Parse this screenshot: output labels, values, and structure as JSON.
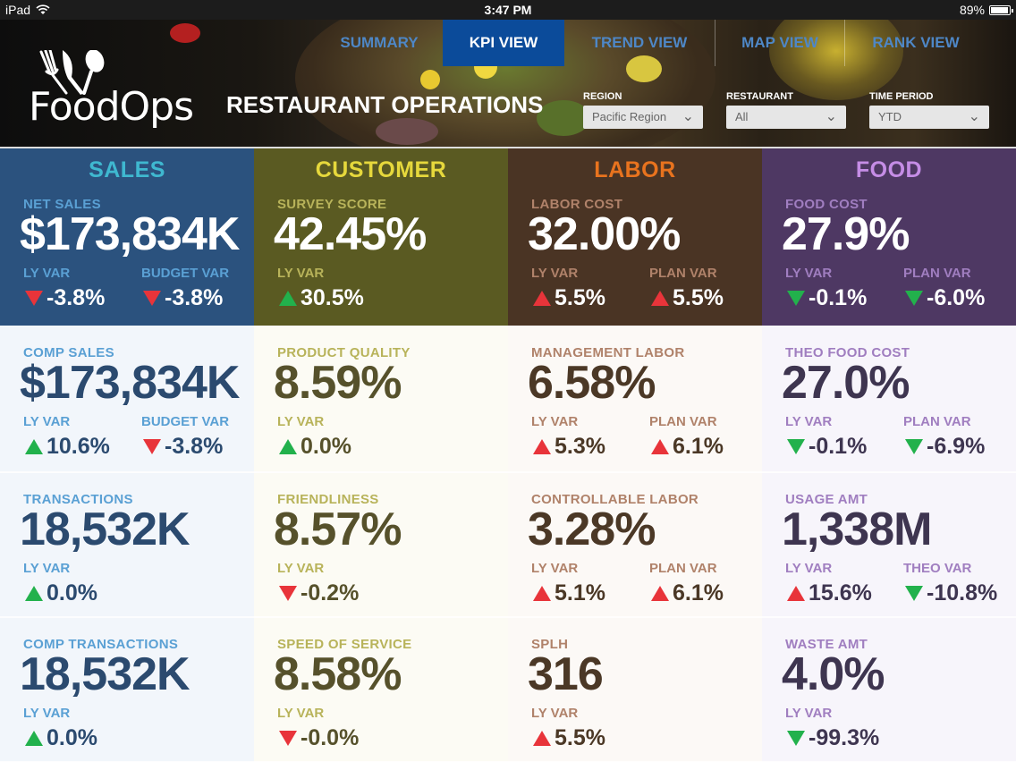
{
  "status_bar": {
    "device": "iPad",
    "time": "3:47 PM",
    "battery": "89%"
  },
  "nav": [
    {
      "label": "SUMMARY",
      "active": false
    },
    {
      "label": "KPI VIEW",
      "active": true
    },
    {
      "label": "TREND VIEW",
      "active": false
    },
    {
      "label": "MAP VIEW",
      "active": false
    },
    {
      "label": "RANK VIEW",
      "active": false
    }
  ],
  "logo": {
    "text": "FoodOps"
  },
  "title": "RESTAURANT OPERATIONS",
  "filters": {
    "region": {
      "label": "REGION",
      "value": "Pacific Region"
    },
    "restaurant": {
      "label": "RESTAURANT",
      "value": "All"
    },
    "time_period": {
      "label": "TIME PERIOD",
      "value": "YTD"
    }
  },
  "columns": {
    "sales": {
      "title": "SALES",
      "kpis": [
        {
          "label": "NET SALES",
          "value": "$173,834K",
          "var1_label": "LY VAR",
          "var1": "-3.8%",
          "var1_dir": "down",
          "var2_label": "BUDGET VAR",
          "var2": "-3.8%",
          "var2_dir": "down"
        },
        {
          "label": "COMP SALES",
          "value": "$173,834K",
          "var1_label": "LY VAR",
          "var1": "10.6%",
          "var1_dir": "up",
          "var2_label": "BUDGET VAR",
          "var2": "-3.8%",
          "var2_dir": "down"
        },
        {
          "label": "TRANSACTIONS",
          "value": "18,532K",
          "var1_label": "LY VAR",
          "var1": "0.0%",
          "var1_dir": "up"
        },
        {
          "label": "COMP TRANSACTIONS",
          "value": "18,532K",
          "var1_label": "LY VAR",
          "var1": "0.0%",
          "var1_dir": "up"
        }
      ]
    },
    "customer": {
      "title": "CUSTOMER",
      "kpis": [
        {
          "label": "SURVEY SCORE",
          "value": "42.45%",
          "var1_label": "LY VAR",
          "var1": "30.5%",
          "var1_dir": "up"
        },
        {
          "label": "PRODUCT QUALITY",
          "value": "8.59%",
          "var1_label": "LY VAR",
          "var1": "0.0%",
          "var1_dir": "up"
        },
        {
          "label": "FRIENDLINESS",
          "value": "8.57%",
          "var1_label": "LY VAR",
          "var1": "-0.2%",
          "var1_dir": "down"
        },
        {
          "label": "SPEED OF SERVICE",
          "value": "8.58%",
          "var1_label": "LY VAR",
          "var1": "-0.0%",
          "var1_dir": "down"
        }
      ]
    },
    "labor": {
      "title": "LABOR",
      "kpis": [
        {
          "label": "LABOR COST",
          "value": "32.00%",
          "var1_label": "LY VAR",
          "var1": "5.5%",
          "var1_dir": "up-red",
          "var2_label": "PLAN VAR",
          "var2": "5.5%",
          "var2_dir": "up-red"
        },
        {
          "label": "MANAGEMENT LABOR",
          "value": "6.58%",
          "var1_label": "LY VAR",
          "var1": "5.3%",
          "var1_dir": "up-red",
          "var2_label": "PLAN VAR",
          "var2": "6.1%",
          "var2_dir": "up-red"
        },
        {
          "label": "CONTROLLABLE LABOR",
          "value": "3.28%",
          "var1_label": "LY VAR",
          "var1": "5.1%",
          "var1_dir": "up-red",
          "var2_label": "PLAN VAR",
          "var2": "6.1%",
          "var2_dir": "up-red"
        },
        {
          "label": "SPLH",
          "value": "316",
          "var1_label": "LY VAR",
          "var1": "5.5%",
          "var1_dir": "up-red"
        }
      ]
    },
    "food": {
      "title": "FOOD",
      "kpis": [
        {
          "label": "FOOD COST",
          "value": "27.9%",
          "var1_label": "LY VAR",
          "var1": "-0.1%",
          "var1_dir": "down-green",
          "var2_label": "PLAN VAR",
          "var2": "-6.0%",
          "var2_dir": "down-green"
        },
        {
          "label": "THEO FOOD COST",
          "value": "27.0%",
          "var1_label": "LY VAR",
          "var1": "-0.1%",
          "var1_dir": "down-green",
          "var2_label": "PLAN VAR",
          "var2": "-6.9%",
          "var2_dir": "down-green"
        },
        {
          "label": "USAGE AMT",
          "value": "1,338M",
          "var1_label": "LY VAR",
          "var1": "15.6%",
          "var1_dir": "up-red",
          "var2_label": "THEO VAR",
          "var2": "-10.8%",
          "var2_dir": "down-green"
        },
        {
          "label": "WASTE AMT",
          "value": "4.0%",
          "var1_label": "LY VAR",
          "var1": "-99.3%",
          "var1_dir": "down-green"
        }
      ]
    }
  },
  "colors": {
    "sales_top": "#2b527e",
    "sales_title": "#3fb8d0",
    "sales_label": "#5aa0d4",
    "sales_rest": "#f2f6fb",
    "sales_text": "#2b4a6f",
    "customer_top": "#5a5a22",
    "customer_title": "#e6d83c",
    "customer_label": "#b8b35a",
    "customer_rest": "#fcfbf4",
    "customer_text": "#56512b",
    "labor_top": "#4a3424",
    "labor_title": "#e8731e",
    "labor_label": "#b0826a",
    "labor_rest": "#fcf9f6",
    "labor_text": "#4b3826",
    "food_top": "#4e3863",
    "food_title": "#c58de6",
    "food_label": "#a07ec0",
    "food_rest": "#f7f5fb",
    "food_text": "#3e3550"
  }
}
